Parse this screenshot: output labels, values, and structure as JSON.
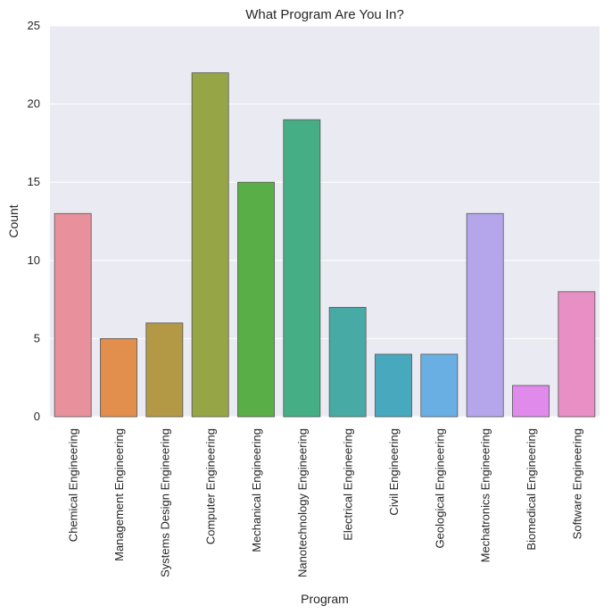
{
  "chart_data": {
    "type": "bar",
    "title": "What Program Are You In?",
    "xlabel": "Program",
    "ylabel": "Count",
    "ylim": [
      0,
      25
    ],
    "yticks": [
      0,
      5,
      10,
      15,
      20,
      25
    ],
    "grid": true,
    "categories": [
      "Chemical Engineering",
      "Management Engineering",
      "Systems Design Engineering",
      "Computer Engineering",
      "Mechanical Engineering",
      "Nanotechnology Engineering",
      "Electrical Engineering",
      "Civil Engineering",
      "Geological Engineering",
      "Mechatronics Engineering",
      "Biomedical Engineering",
      "Software Engineering"
    ],
    "values": [
      13,
      5,
      6,
      22,
      15,
      19,
      7,
      4,
      4,
      13,
      2,
      8
    ],
    "colors": [
      "#e8919c",
      "#e28f4e",
      "#b39845",
      "#96a646",
      "#5aae47",
      "#46ae84",
      "#48aaa4",
      "#48a8bd",
      "#6aafe3",
      "#b5a6ec",
      "#e08aec",
      "#e88fc6"
    ],
    "plot_background": "#eaeaf2",
    "grid_color": "#ffffff"
  }
}
